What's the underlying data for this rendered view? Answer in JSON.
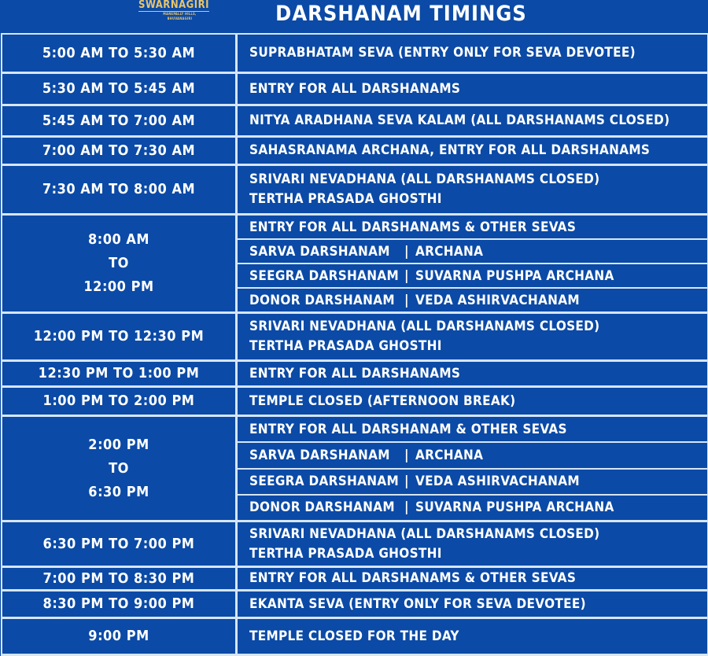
{
  "logo": {
    "name": "SWARNAGIRI",
    "tagline": "MANEPALLY HILLS, BHUVANAGIRI"
  },
  "title": "DARSHANAM TIMINGS",
  "rows": [
    {
      "time": [
        "5:00 AM TO 5:30 AM"
      ],
      "desc": [
        "SUPRABHATAM SEVA (ENTRY ONLY FOR SEVA DEVOTEE)"
      ]
    },
    {
      "time": [
        "5:30 AM TO 5:45 AM"
      ],
      "desc": [
        "ENTRY FOR ALL DARSHANAMS"
      ]
    },
    {
      "time": [
        "5:45 AM TO 7:00 AM"
      ],
      "desc": [
        "NITYA ARADHANA SEVA KALAM (ALL DARSHANAMS CLOSED)"
      ]
    },
    {
      "time": [
        "7:00 AM TO 7:30 AM"
      ],
      "desc": [
        "SAHASRANAMA ARCHANA, ENTRY FOR ALL DARSHANAMS"
      ]
    },
    {
      "time": [
        "7:30 AM TO 8:00 AM"
      ],
      "desc": [
        "SRIVARI NEVADHANA (ALL DARSHANAMS CLOSED)",
        "TERTHA PRASADA GHOSTHI"
      ]
    },
    {
      "time": [
        "8:00 AM",
        "TO",
        "12:00 PM"
      ],
      "subs": [
        {
          "a": "ENTRY FOR ALL DARSHANAMS & OTHER SEVAS"
        },
        {
          "a": "SARVA DARSHANAM",
          "sep": "|",
          "b": "ARCHANA"
        },
        {
          "a": "SEEGRA DARSHANAM",
          "sep": "|",
          "b": "SUVARNA PUSHPA ARCHANA"
        },
        {
          "a": "DONOR DARSHANAM",
          "sep": "|",
          "b": "VEDA ASHIRVACHANAM"
        }
      ]
    },
    {
      "time": [
        "12:00 PM TO 12:30 PM"
      ],
      "desc": [
        "SRIVARI NEVADHANA (ALL DARSHANAMS CLOSED)",
        "TERTHA PRASADA GHOSTHI"
      ]
    },
    {
      "time": [
        "12:30 PM TO 1:00 PM"
      ],
      "desc": [
        "ENTRY FOR ALL DARSHANAMS"
      ]
    },
    {
      "time": [
        "1:00 PM TO 2:00 PM"
      ],
      "desc": [
        "TEMPLE CLOSED (AFTERNOON BREAK)"
      ]
    },
    {
      "time": [
        "2:00 PM",
        "TO",
        "6:30 PM"
      ],
      "subs": [
        {
          "a": "ENTRY FOR ALL DARSHANAM & OTHER SEVAS"
        },
        {
          "a": "SARVA DARSHANAM",
          "sep": "|",
          "b": "ARCHANA"
        },
        {
          "a": "SEEGRA DARSHANAM",
          "sep": "|",
          "b": "VEDA ASHIRVACHANAM"
        },
        {
          "a": "DONOR DARSHANAM",
          "sep": "|",
          "b": "SUVARNA PUSHPA ARCHANA"
        }
      ]
    },
    {
      "time": [
        "6:30 PM TO 7:00 PM"
      ],
      "desc": [
        "SRIVARI NEVADHANA (ALL DARSHANAMS CLOSED)",
        "TERTHA PRASADA GHOSTHI"
      ]
    },
    {
      "time": [
        "7:00 PM TO 8:30 PM"
      ],
      "desc": [
        "ENTRY FOR ALL DARSHANAMS & OTHER SEVAS"
      ]
    },
    {
      "time": [
        "8:30 PM TO 9:00 PM"
      ],
      "desc": [
        "EKANTA SEVA (ENTRY ONLY FOR SEVA DEVOTEE)"
      ]
    },
    {
      "time": [
        "9:00 PM"
      ],
      "desc": [
        "TEMPLE CLOSED FOR THE DAY"
      ]
    }
  ]
}
